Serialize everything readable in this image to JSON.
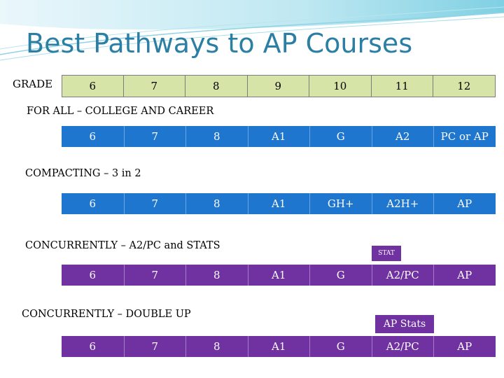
{
  "title": "Best Pathways to AP Courses",
  "grade_label": "GRADE",
  "grades": [
    "6",
    "7",
    "8",
    "9",
    "10",
    "11",
    "12"
  ],
  "sections": [
    {
      "heading": "FOR ALL – COLLEGE AND CAREER",
      "cells": [
        "6",
        "7",
        "8",
        "A1",
        "G",
        "A2",
        "PC or AP"
      ]
    },
    {
      "heading": "COMPACTING – 3 in 2",
      "cells": [
        "6",
        "7",
        "8",
        "A1",
        "GH+",
        "A2H+",
        "AP"
      ]
    },
    {
      "heading": "CONCURRENTLY – A2/PC and STATS",
      "badge": "STAT",
      "cells": [
        "6",
        "7",
        "8",
        "A1",
        "G",
        "A2/PC",
        "AP"
      ]
    },
    {
      "heading": "CONCURRENTLY – DOUBLE UP",
      "badge": "AP Stats",
      "cells": [
        "6",
        "7",
        "8",
        "A1",
        "G",
        "A2/PC",
        "AP"
      ]
    }
  ],
  "colors": {
    "title": "#2b7fa4",
    "grade_cell": "#d7e4a8",
    "blue_row": "#1f76cf",
    "purple_row": "#7032a0"
  }
}
